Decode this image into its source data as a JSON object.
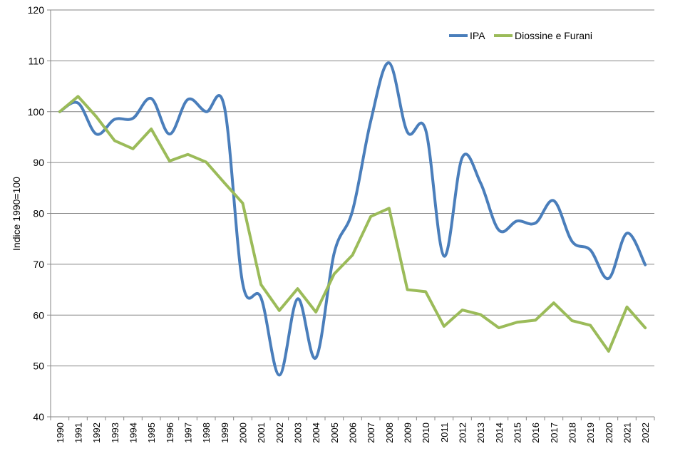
{
  "chart_data": {
    "type": "line",
    "title": "",
    "xlabel": "",
    "ylabel": "Indice 1990=100",
    "ylim": [
      40,
      120
    ],
    "yticks": [
      40,
      50,
      60,
      70,
      80,
      90,
      100,
      110,
      120
    ],
    "grid": "horizontal",
    "legend_position": "top-right",
    "x": [
      "1990",
      "1991",
      "1992",
      "1993",
      "1994",
      "1995",
      "1996",
      "1997",
      "1998",
      "1999",
      "2000",
      "2001",
      "2002",
      "2003",
      "2004",
      "2005",
      "2006",
      "2007",
      "2008",
      "2009",
      "2010",
      "2011",
      "2012",
      "2013",
      "2014",
      "2015",
      "2016",
      "2017",
      "2018",
      "2019",
      "2020",
      "2021",
      "2022"
    ],
    "series": [
      {
        "name": "IPA",
        "color": "#4A7EBB",
        "values": [
          100,
          101.7,
          95.6,
          98.5,
          98.7,
          102.6,
          95.6,
          102.4,
          100,
          100.9,
          66.2,
          63.4,
          48.2,
          63.2,
          51.6,
          72.2,
          80.5,
          98.2,
          109.6,
          96.0,
          96.4,
          71.6,
          91.0,
          86.0,
          76.7,
          78.5,
          78.1,
          82.5,
          74.5,
          72.8,
          67.2,
          76.1,
          69.9
        ]
      },
      {
        "name": "Diossine e Furani",
        "color": "#9BBB59",
        "values": [
          100,
          103.0,
          99.0,
          94.3,
          92.7,
          96.6,
          90.3,
          91.6,
          90.1,
          86.0,
          82.0,
          66.0,
          60.9,
          65.2,
          60.6,
          68.1,
          71.8,
          79.4,
          81.0,
          65.0,
          64.6,
          57.8,
          61.0,
          60.1,
          57.5,
          58.6,
          59.0,
          62.4,
          58.9,
          58.0,
          52.9,
          61.6,
          57.5
        ]
      }
    ]
  }
}
